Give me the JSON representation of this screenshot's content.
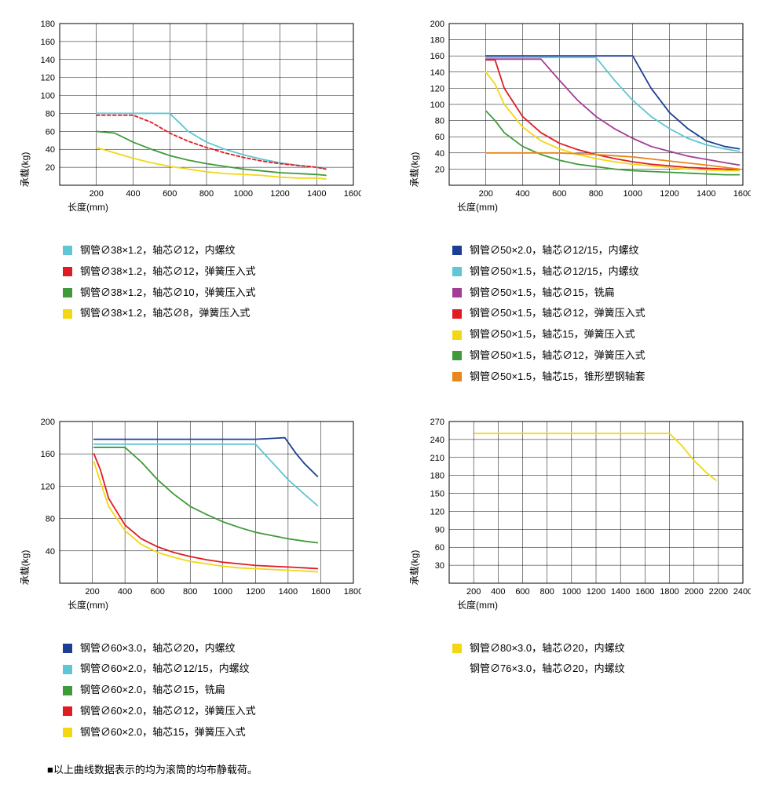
{
  "global": {
    "grid_color": "#000000",
    "grid_width": 0.5,
    "axis_color": "#000000",
    "background_color": "#ffffff",
    "label_fontsize": 12,
    "tick_fontsize": 11,
    "legend_fontsize": 13,
    "curve_width": 1.8
  },
  "charts": [
    {
      "id": "chart1",
      "xlabel": "长度(mm)",
      "ylabel": "承载(kg)",
      "xlim": [
        0,
        1600
      ],
      "xtick_step": 200,
      "xtick_start": 200,
      "ylim": [
        0,
        180
      ],
      "ytick_step": 20,
      "ytick_start": 20,
      "series": [
        {
          "color": "#5fc6d4",
          "dash": "",
          "label": "钢管∅38×1.2，轴芯∅12，内螺纹",
          "points": [
            [
              200,
              80
            ],
            [
              400,
              80
            ],
            [
              600,
              80
            ],
            [
              700,
              60
            ],
            [
              800,
              48
            ],
            [
              900,
              40
            ],
            [
              1000,
              34
            ],
            [
              1100,
              29
            ],
            [
              1200,
              25
            ],
            [
              1300,
              22
            ],
            [
              1400,
              20
            ],
            [
              1450,
              18
            ]
          ]
        },
        {
          "color": "#e11b22",
          "dash": "4,3",
          "label": "钢管∅38×1.2，轴芯∅12，弹簧压入式",
          "points": [
            [
              200,
              78
            ],
            [
              300,
              78
            ],
            [
              400,
              78
            ],
            [
              500,
              70
            ],
            [
              600,
              58
            ],
            [
              700,
              49
            ],
            [
              800,
              42
            ],
            [
              900,
              36
            ],
            [
              1000,
              31
            ],
            [
              1100,
              27
            ],
            [
              1200,
              24
            ],
            [
              1300,
              22
            ],
            [
              1400,
              20
            ],
            [
              1450,
              18
            ]
          ]
        },
        {
          "color": "#3f9b3a",
          "dash": "",
          "label": "钢管∅38×1.2，轴芯∅10，弹簧压入式",
          "points": [
            [
              200,
              60
            ],
            [
              300,
              58
            ],
            [
              400,
              48
            ],
            [
              500,
              40
            ],
            [
              600,
              33
            ],
            [
              700,
              28
            ],
            [
              800,
              24
            ],
            [
              900,
              21
            ],
            [
              1000,
              18
            ],
            [
              1100,
              16
            ],
            [
              1200,
              14
            ],
            [
              1300,
              13
            ],
            [
              1400,
              12
            ],
            [
              1450,
              11
            ]
          ]
        },
        {
          "color": "#f2d715",
          "dash": "",
          "label": "钢管∅38×1.2，轴芯∅8，弹簧压入式",
          "points": [
            [
              200,
              42
            ],
            [
              300,
              36
            ],
            [
              400,
              30
            ],
            [
              500,
              25
            ],
            [
              600,
              21
            ],
            [
              700,
              18
            ],
            [
              800,
              15
            ],
            [
              900,
              13
            ],
            [
              1000,
              12
            ],
            [
              1100,
              11
            ],
            [
              1200,
              9
            ],
            [
              1300,
              8
            ],
            [
              1400,
              8
            ],
            [
              1450,
              7
            ]
          ]
        }
      ]
    },
    {
      "id": "chart2",
      "xlabel": "长度(mm)",
      "ylabel": "承载(kg)",
      "xlim": [
        0,
        1600
      ],
      "xtick_step": 200,
      "xtick_start": 200,
      "ylim": [
        0,
        200
      ],
      "ytick_step": 20,
      "ytick_start": 20,
      "series": [
        {
          "color": "#1c3f94",
          "dash": "",
          "label": "钢管∅50×2.0，轴芯∅12/15，内螺纹",
          "points": [
            [
              200,
              160
            ],
            [
              400,
              160
            ],
            [
              600,
              160
            ],
            [
              800,
              160
            ],
            [
              1000,
              160
            ],
            [
              1100,
              120
            ],
            [
              1200,
              90
            ],
            [
              1300,
              70
            ],
            [
              1400,
              55
            ],
            [
              1500,
              48
            ],
            [
              1580,
              45
            ]
          ]
        },
        {
          "color": "#5fc6d4",
          "dash": "",
          "label": "钢管∅50×1.5，轴芯∅12/15，内螺纹",
          "points": [
            [
              200,
              158
            ],
            [
              400,
              158
            ],
            [
              600,
              158
            ],
            [
              800,
              158
            ],
            [
              900,
              130
            ],
            [
              1000,
              105
            ],
            [
              1100,
              85
            ],
            [
              1200,
              70
            ],
            [
              1300,
              58
            ],
            [
              1400,
              50
            ],
            [
              1500,
              45
            ],
            [
              1580,
              42
            ]
          ]
        },
        {
          "color": "#a23d97",
          "dash": "",
          "label": "钢管∅50×1.5，轴芯∅15，铣扁",
          "points": [
            [
              200,
              156
            ],
            [
              300,
              156
            ],
            [
              400,
              156
            ],
            [
              500,
              156
            ],
            [
              600,
              130
            ],
            [
              700,
              105
            ],
            [
              800,
              85
            ],
            [
              900,
              70
            ],
            [
              1000,
              58
            ],
            [
              1100,
              48
            ],
            [
              1200,
              42
            ],
            [
              1300,
              36
            ],
            [
              1400,
              32
            ],
            [
              1500,
              28
            ],
            [
              1580,
              25
            ]
          ]
        },
        {
          "color": "#e11b22",
          "dash": "",
          "label": "钢管∅50×1.5，轴芯∅12，弹簧压入式",
          "points": [
            [
              200,
              155
            ],
            [
              250,
              155
            ],
            [
              300,
              120
            ],
            [
              400,
              85
            ],
            [
              500,
              65
            ],
            [
              600,
              52
            ],
            [
              700,
              44
            ],
            [
              800,
              38
            ],
            [
              900,
              33
            ],
            [
              1000,
              29
            ],
            [
              1100,
              26
            ],
            [
              1200,
              24
            ],
            [
              1300,
              22
            ],
            [
              1400,
              21
            ],
            [
              1500,
              20
            ],
            [
              1580,
              19
            ]
          ]
        },
        {
          "color": "#f2d715",
          "dash": "",
          "label": "钢管∅50×1.5，轴芯15，弹簧压入式",
          "points": [
            [
              200,
              140
            ],
            [
              250,
              125
            ],
            [
              300,
              100
            ],
            [
              400,
              72
            ],
            [
              500,
              55
            ],
            [
              600,
              45
            ],
            [
              700,
              38
            ],
            [
              800,
              33
            ],
            [
              900,
              29
            ],
            [
              1000,
              26
            ],
            [
              1100,
              24
            ],
            [
              1200,
              22
            ],
            [
              1300,
              20
            ],
            [
              1400,
              19
            ],
            [
              1500,
              18
            ],
            [
              1580,
              18
            ]
          ]
        },
        {
          "color": "#3f9b3a",
          "dash": "",
          "label": "钢管∅50×1.5，轴芯∅12，弹簧压入式",
          "points": [
            [
              200,
              92
            ],
            [
              250,
              80
            ],
            [
              300,
              65
            ],
            [
              400,
              48
            ],
            [
              500,
              38
            ],
            [
              600,
              31
            ],
            [
              700,
              26
            ],
            [
              800,
              23
            ],
            [
              900,
              20
            ],
            [
              1000,
              18
            ],
            [
              1100,
              17
            ],
            [
              1200,
              16
            ],
            [
              1300,
              15
            ],
            [
              1400,
              14
            ],
            [
              1500,
              13
            ],
            [
              1580,
              13
            ]
          ]
        },
        {
          "color": "#e8871c",
          "dash": "",
          "label": "钢管∅50×1.5，轴芯15，锥形塑钢轴套",
          "points": [
            [
              200,
              40
            ],
            [
              400,
              40
            ],
            [
              600,
              40
            ],
            [
              800,
              38
            ],
            [
              1000,
              35
            ],
            [
              1200,
              30
            ],
            [
              1400,
              25
            ],
            [
              1580,
              20
            ]
          ]
        }
      ]
    },
    {
      "id": "chart3",
      "xlabel": "长度(mm)",
      "ylabel": "承载(kg)",
      "xlim": [
        0,
        1800
      ],
      "xtick_step": 200,
      "xtick_start": 200,
      "ylim": [
        0,
        200
      ],
      "ytick_step": 40,
      "ytick_start": 40,
      "series": [
        {
          "color": "#1c3f94",
          "dash": "",
          "label": "钢管∅60×3.0，轴芯∅20，内螺纹",
          "points": [
            [
              210,
              178
            ],
            [
              400,
              178
            ],
            [
              600,
              178
            ],
            [
              800,
              178
            ],
            [
              1000,
              178
            ],
            [
              1200,
              178
            ],
            [
              1380,
              180
            ],
            [
              1450,
              160
            ],
            [
              1500,
              148
            ],
            [
              1580,
              132
            ]
          ]
        },
        {
          "color": "#5fc6d4",
          "dash": "",
          "label": "钢管∅60×2.0，轴芯∅12/15，内螺纹",
          "points": [
            [
              210,
              172
            ],
            [
              400,
              172
            ],
            [
              600,
              172
            ],
            [
              800,
              172
            ],
            [
              1000,
              172
            ],
            [
              1200,
              172
            ],
            [
              1300,
              150
            ],
            [
              1400,
              128
            ],
            [
              1500,
              110
            ],
            [
              1580,
              96
            ]
          ]
        },
        {
          "color": "#3f9b3a",
          "dash": "",
          "label": "钢管∅60×2.0，轴芯∅15，铣扁",
          "points": [
            [
              210,
              168
            ],
            [
              300,
              168
            ],
            [
              400,
              168
            ],
            [
              500,
              150
            ],
            [
              600,
              128
            ],
            [
              700,
              110
            ],
            [
              800,
              95
            ],
            [
              900,
              85
            ],
            [
              1000,
              76
            ],
            [
              1100,
              69
            ],
            [
              1200,
              63
            ],
            [
              1300,
              59
            ],
            [
              1400,
              55
            ],
            [
              1500,
              52
            ],
            [
              1580,
              50
            ]
          ]
        },
        {
          "color": "#e11b22",
          "dash": "",
          "label": "钢管∅60×2.0，轴芯∅12，弹簧压入式",
          "points": [
            [
              210,
              160
            ],
            [
              250,
              140
            ],
            [
              300,
              105
            ],
            [
              400,
              72
            ],
            [
              500,
              55
            ],
            [
              600,
              45
            ],
            [
              700,
              38
            ],
            [
              800,
              33
            ],
            [
              900,
              29
            ],
            [
              1000,
              26
            ],
            [
              1100,
              24
            ],
            [
              1200,
              22
            ],
            [
              1300,
              21
            ],
            [
              1400,
              20
            ],
            [
              1500,
              19
            ],
            [
              1580,
              18
            ]
          ]
        },
        {
          "color": "#f2d715",
          "dash": "",
          "label": "钢管∅60×2.0，轴芯15，弹簧压入式",
          "points": [
            [
              210,
              150
            ],
            [
              250,
              125
            ],
            [
              300,
              95
            ],
            [
              400,
              65
            ],
            [
              500,
              48
            ],
            [
              600,
              38
            ],
            [
              700,
              32
            ],
            [
              800,
              27
            ],
            [
              900,
              24
            ],
            [
              1000,
              21
            ],
            [
              1100,
              19
            ],
            [
              1200,
              18
            ],
            [
              1300,
              17
            ],
            [
              1400,
              16
            ],
            [
              1500,
              15
            ],
            [
              1580,
              14
            ]
          ]
        }
      ]
    },
    {
      "id": "chart4",
      "xlabel": "长度(mm)",
      "ylabel": "承载(kg)",
      "xlim": [
        0,
        2400
      ],
      "xtick_step": 200,
      "xtick_start": 200,
      "ylim": [
        0,
        270
      ],
      "ytick_step": 30,
      "ytick_start": 30,
      "series": [
        {
          "color": "#f2d715",
          "dash": "",
          "label": "钢管∅80×3.0，轴芯∅20，内螺纹",
          "points": [
            [
              210,
              250
            ],
            [
              400,
              250
            ],
            [
              600,
              250
            ],
            [
              800,
              250
            ],
            [
              1000,
              250
            ],
            [
              1200,
              250
            ],
            [
              1400,
              250
            ],
            [
              1600,
              250
            ],
            [
              1800,
              250
            ],
            [
              1900,
              230
            ],
            [
              2000,
              205
            ],
            [
              2100,
              185
            ],
            [
              2180,
              172
            ]
          ]
        },
        {
          "color": null,
          "dash": "",
          "label": "钢管∅76×3.0，轴芯∅20，内螺纹",
          "points": []
        }
      ]
    }
  ],
  "footnote": "■以上曲线数据表示的均为滚筒的均布静载荷。"
}
